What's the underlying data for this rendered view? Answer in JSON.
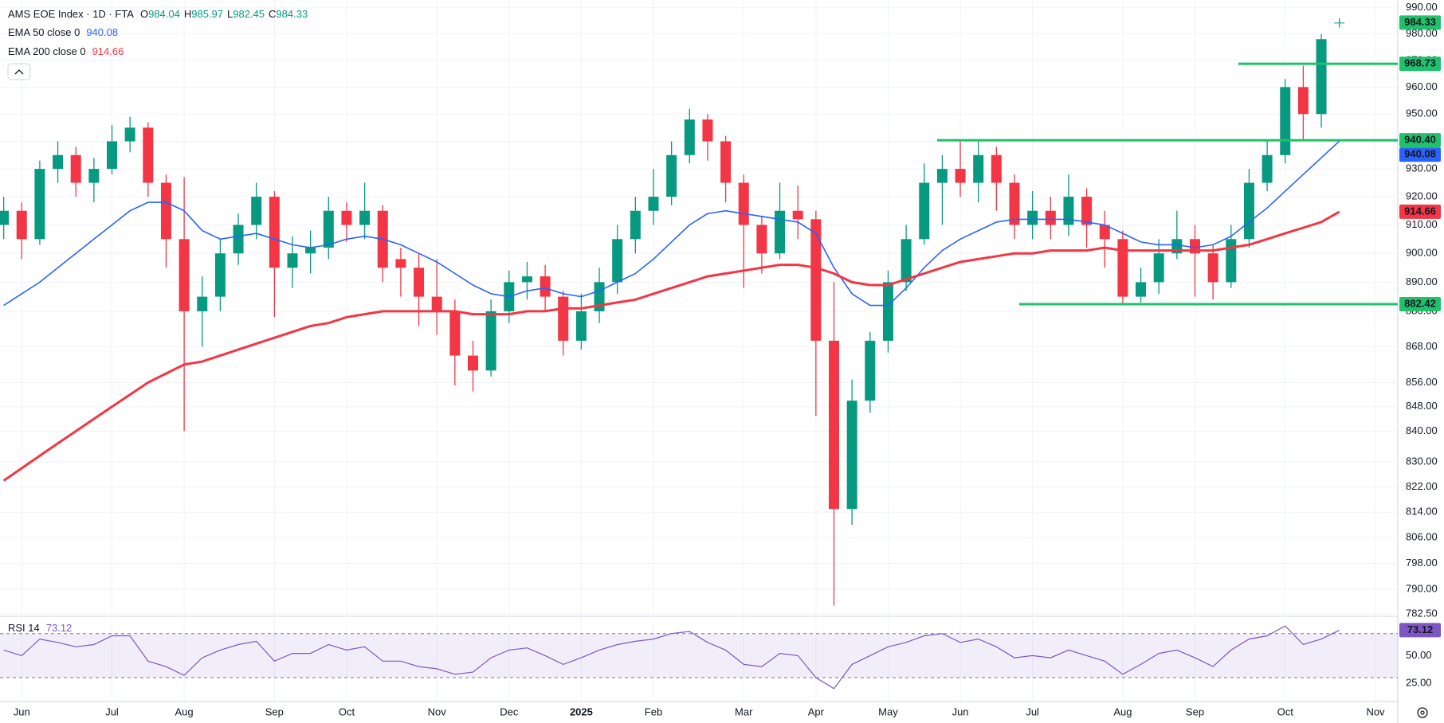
{
  "chart_data": {
    "type": "candlestick",
    "title": "AMS EOE Index · 1D · FTA",
    "ohlc_labels": [
      "O",
      "H",
      "L",
      "C"
    ],
    "categories": [
      null,
      "Jun",
      null,
      null,
      null,
      null,
      "Jul",
      null,
      null,
      null,
      "Aug",
      null,
      null,
      null,
      null,
      "Sep",
      null,
      null,
      null,
      "Oct",
      null,
      null,
      null,
      null,
      "Nov",
      null,
      null,
      null,
      "Dec",
      null,
      null,
      null,
      "2025",
      null,
      null,
      null,
      "Feb",
      null,
      null,
      null,
      null,
      "Mar",
      null,
      null,
      null,
      "Apr",
      null,
      null,
      null,
      "May",
      null,
      null,
      null,
      "Jun",
      null,
      null,
      null,
      "Jul",
      null,
      null,
      null,
      null,
      "Aug",
      null,
      null,
      null,
      "Sep",
      null,
      null,
      null,
      null,
      "Oct",
      null,
      null,
      null,
      null,
      "Nov"
    ],
    "open": [
      910,
      915,
      905,
      930,
      935,
      925,
      930,
      940,
      945,
      925,
      905,
      880,
      885,
      900,
      910,
      920,
      895,
      900,
      902,
      915,
      910,
      915,
      898,
      895,
      885,
      880,
      865,
      860,
      880,
      890,
      892,
      885,
      870,
      880,
      890,
      905,
      915,
      920,
      935,
      948,
      940,
      925,
      910,
      900,
      915,
      912,
      870,
      815,
      850,
      870,
      890,
      905,
      925,
      930,
      925,
      935,
      925,
      910,
      915,
      910,
      920,
      910,
      905,
      885,
      890,
      900,
      905,
      900,
      890,
      905,
      925,
      935,
      960,
      950,
      984.04,
      null,
      null
    ],
    "high": [
      920,
      918,
      933,
      940,
      938,
      934,
      946,
      949,
      947,
      928,
      927,
      892,
      905,
      914,
      925,
      922,
      906,
      908,
      920,
      918,
      925,
      917,
      902,
      900,
      898,
      884,
      870,
      884,
      894,
      897,
      896,
      887,
      886,
      895,
      910,
      920,
      930,
      940,
      952,
      950,
      942,
      928,
      913,
      925,
      924,
      915,
      890,
      857,
      873,
      894,
      910,
      932,
      935,
      940,
      940,
      938,
      928,
      922,
      920,
      928,
      923,
      915,
      908,
      895,
      905,
      915,
      910,
      903,
      910,
      930,
      940,
      963,
      968,
      980,
      985.97,
      null,
      null
    ],
    "low": [
      905,
      898,
      903,
      925,
      920,
      918,
      928,
      936,
      920,
      895,
      840,
      868,
      880,
      896,
      905,
      878,
      888,
      893,
      898,
      904,
      905,
      890,
      885,
      875,
      872,
      855,
      853,
      858,
      876,
      884,
      880,
      865,
      867,
      876,
      886,
      900,
      910,
      917,
      932,
      933,
      918,
      888,
      893,
      898,
      905,
      845,
      785,
      810,
      846,
      866,
      887,
      903,
      910,
      920,
      918,
      915,
      905,
      905,
      905,
      906,
      902,
      895,
      882,
      883,
      886,
      898,
      885,
      884,
      888,
      902,
      922,
      932,
      940,
      945,
      982.45,
      null,
      null
    ],
    "close": [
      915,
      905,
      930,
      935,
      925,
      930,
      940,
      945,
      925,
      905,
      880,
      885,
      900,
      910,
      920,
      895,
      900,
      902,
      915,
      910,
      915,
      895,
      895,
      885,
      880,
      865,
      860,
      880,
      890,
      892,
      885,
      870,
      880,
      890,
      905,
      915,
      920,
      935,
      948,
      940,
      925,
      910,
      900,
      915,
      912,
      870,
      815,
      850,
      870,
      890,
      905,
      925,
      930,
      925,
      935,
      925,
      910,
      915,
      910,
      920,
      910,
      905,
      885,
      890,
      900,
      905,
      900,
      890,
      905,
      925,
      935,
      960,
      950,
      978,
      984.33,
      null,
      null
    ],
    "up_color": "#089981",
    "down_color": "#f23645",
    "log": true,
    "grid": true,
    "ylim": [
      782,
      993
    ],
    "yticks": [
      {
        "value": 990,
        "label": "990.00"
      },
      {
        "value": 980,
        "label": "980.00"
      },
      {
        "value": 970,
        "label": "970.00"
      },
      {
        "value": 960,
        "label": "960.00"
      },
      {
        "value": 950,
        "label": "950.00"
      },
      {
        "value": 940,
        "label": "940.00"
      },
      {
        "value": 930,
        "label": "930.00"
      },
      {
        "value": 920,
        "label": "920.00"
      },
      {
        "value": 910,
        "label": "910.00"
      },
      {
        "value": 900,
        "label": "900.00"
      },
      {
        "value": 890,
        "label": "890.00"
      },
      {
        "value": 880,
        "label": "880.00"
      },
      {
        "value": 868,
        "label": "868.00"
      },
      {
        "value": 856,
        "label": "856.00"
      },
      {
        "value": 848,
        "label": "848.00"
      },
      {
        "value": 840,
        "label": "840.00"
      },
      {
        "value": 830,
        "label": "830.00"
      },
      {
        "value": 822,
        "label": "822.00"
      },
      {
        "value": 814,
        "label": "814.00"
      },
      {
        "value": 806,
        "label": "806.00"
      },
      {
        "value": 798,
        "label": "798.00"
      },
      {
        "value": 790,
        "label": "790.00"
      },
      {
        "value": 782.5,
        "label": "782.50"
      }
    ],
    "overlays": [
      {
        "name": "EMA 50 close 0",
        "color": "#2962ff",
        "values": [
          882,
          886,
          890,
          895,
          900,
          905,
          910,
          915,
          918,
          918,
          915,
          908,
          905,
          906,
          907,
          905,
          903,
          902,
          903,
          905,
          906,
          905,
          903,
          900,
          897,
          893,
          889,
          886,
          885,
          887,
          888,
          886,
          885,
          887,
          890,
          893,
          898,
          904,
          910,
          914,
          915,
          914,
          913,
          912,
          911,
          907,
          895,
          886,
          882,
          882,
          888,
          895,
          901,
          905,
          908,
          911,
          912,
          912,
          912,
          912,
          911,
          910,
          907,
          904,
          903,
          903,
          902,
          903,
          906,
          911,
          916,
          922,
          928,
          934,
          940.08,
          null,
          null
        ]
      },
      {
        "name": "EMA 200 close 0",
        "color": "#f23645",
        "values": [
          824,
          828,
          832,
          836,
          840,
          844,
          848,
          852,
          856,
          859,
          862,
          863,
          865,
          867,
          869,
          871,
          873,
          875,
          876,
          878,
          879,
          880,
          880,
          880,
          880,
          880,
          879,
          879,
          879,
          880,
          880,
          881,
          881,
          882,
          883,
          884,
          886,
          888,
          890,
          892,
          893,
          894,
          895,
          896,
          896,
          895,
          893,
          890,
          889,
          889,
          891,
          893,
          895,
          897,
          898,
          899,
          900,
          900,
          901,
          901,
          901,
          902,
          901,
          901,
          901,
          901,
          901,
          901,
          902,
          903,
          905,
          907,
          909,
          911,
          914.66,
          null,
          null
        ]
      }
    ],
    "levels": {
      "color": "#1fc16b",
      "values": [
        968.73,
        940.4,
        882.42
      ],
      "value_labels": [
        "968.73",
        "940.40",
        "882.42"
      ]
    },
    "rsi": {
      "name": "RSI 14",
      "color": "#7e57c2",
      "values": [
        55,
        50,
        65,
        62,
        58,
        60,
        68,
        68,
        45,
        40,
        32,
        48,
        55,
        60,
        63,
        45,
        52,
        52,
        60,
        55,
        58,
        45,
        45,
        40,
        38,
        33,
        35,
        48,
        55,
        57,
        50,
        42,
        48,
        55,
        60,
        63,
        65,
        70,
        72,
        62,
        55,
        42,
        40,
        52,
        50,
        30,
        20,
        42,
        50,
        58,
        62,
        68,
        70,
        62,
        65,
        58,
        48,
        50,
        48,
        55,
        50,
        45,
        33,
        42,
        52,
        55,
        48,
        40,
        55,
        65,
        68,
        77,
        60,
        65,
        73.12,
        null,
        null
      ],
      "ylim": [
        9,
        85
      ],
      "yticks": [
        {
          "value": 25,
          "label": "25.00"
        },
        {
          "value": 50,
          "label": "50.00"
        }
      ],
      "band": [
        30,
        70
      ]
    }
  }
}
